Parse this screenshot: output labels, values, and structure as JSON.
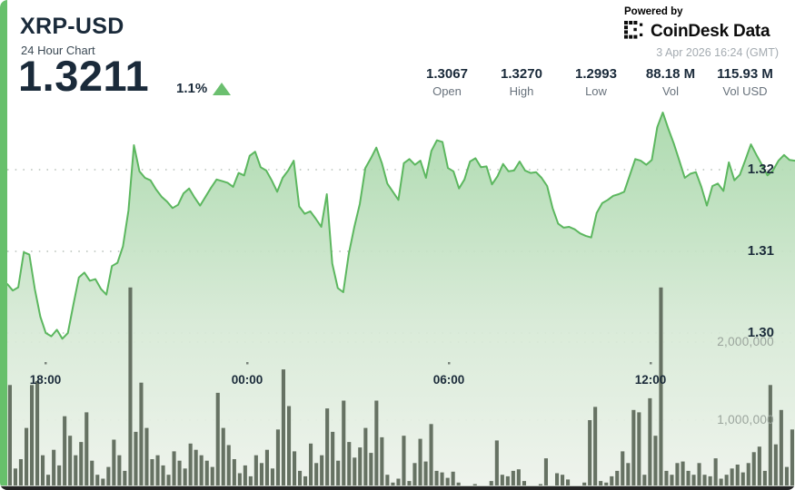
{
  "header": {
    "symbol": "XRP-USD",
    "subtitle": "24 Hour Chart",
    "price": "1.3211",
    "change_percent": "1.1%",
    "change_direction": "up",
    "powered_by": "Powered by",
    "brand_name": "CoinDesk",
    "brand_suffix": "Data",
    "timestamp": "3 Apr 2026 16:24 (GMT)"
  },
  "stats": [
    {
      "value": "1.3067",
      "label": "Open"
    },
    {
      "value": "1.3270",
      "label": "High"
    },
    {
      "value": "1.2993",
      "label": "Low"
    },
    {
      "value": "88.18 M",
      "label": "Vol"
    },
    {
      "value": "115.93 M",
      "label": "Vol USD"
    }
  ],
  "colors": {
    "accent_green": "#67c06b",
    "line_green": "#5cb75f",
    "up_triangle": "#6bbf6f",
    "bar_gray": "#5f6a5c",
    "text_navy": "#1a2a3a",
    "text_gray": "#68727c",
    "axis_gray": "#9aa49c"
  },
  "chart_data": {
    "type": "area+bar",
    "title": "XRP-USD 24 Hour Chart",
    "x": {
      "start_time": "16:40",
      "interval_minutes": 10,
      "points": 144
    },
    "x_ticks": [
      {
        "label": "18:00"
      },
      {
        "label": "00:00"
      },
      {
        "label": "06:00"
      },
      {
        "label": "12:00"
      }
    ],
    "price_axis": {
      "gridlines": [
        1.32,
        1.31,
        1.3
      ],
      "tick_labels": [
        "1.32",
        "1.31",
        "1.30"
      ],
      "ylim": [
        1.296,
        1.328
      ],
      "unit": "USD"
    },
    "volume_axis": {
      "gridlines": [
        2000000,
        1000000
      ],
      "tick_labels": [
        "2,000,000",
        "1,000,000"
      ],
      "unit": "shares"
    },
    "legend": "none",
    "grid": "dotted",
    "series": [
      {
        "name": "XRP-USD price",
        "type": "area",
        "unit": "USD",
        "values": [
          1.306,
          1.3052,
          1.3056,
          1.3099,
          1.3096,
          1.3054,
          1.302,
          1.3,
          1.2996,
          1.3004,
          1.2993,
          1.3,
          1.3035,
          1.3068,
          1.3074,
          1.3064,
          1.3066,
          1.3054,
          1.3047,
          1.3082,
          1.3086,
          1.3106,
          1.315,
          1.323,
          1.3198,
          1.319,
          1.3187,
          1.3176,
          1.3167,
          1.3161,
          1.3153,
          1.3157,
          1.3171,
          1.3177,
          1.3166,
          1.3156,
          1.3167,
          1.3178,
          1.3188,
          1.3186,
          1.3184,
          1.3179,
          1.3196,
          1.3193,
          1.3217,
          1.3222,
          1.3203,
          1.3199,
          1.3187,
          1.3173,
          1.319,
          1.3199,
          1.3211,
          1.3155,
          1.3146,
          1.3149,
          1.314,
          1.313,
          1.317,
          1.3085,
          1.3055,
          1.305,
          1.3097,
          1.313,
          1.3158,
          1.3202,
          1.3214,
          1.3227,
          1.3208,
          1.3183,
          1.3173,
          1.3163,
          1.3208,
          1.3213,
          1.3206,
          1.3211,
          1.319,
          1.3223,
          1.3236,
          1.3234,
          1.3202,
          1.3198,
          1.3177,
          1.3188,
          1.321,
          1.3214,
          1.3203,
          1.3204,
          1.3182,
          1.3192,
          1.3207,
          1.3198,
          1.3199,
          1.321,
          1.3199,
          1.3196,
          1.3197,
          1.319,
          1.318,
          1.3153,
          1.3134,
          1.3129,
          1.313,
          1.3127,
          1.3122,
          1.3119,
          1.3117,
          1.3147,
          1.3159,
          1.3163,
          1.3168,
          1.317,
          1.3173,
          1.3193,
          1.3213,
          1.3211,
          1.3206,
          1.3212,
          1.3252,
          1.327,
          1.325,
          1.3232,
          1.3211,
          1.319,
          1.3195,
          1.3197,
          1.3179,
          1.3156,
          1.318,
          1.3183,
          1.3174,
          1.3209,
          1.3187,
          1.3194,
          1.3212,
          1.3231,
          1.3218,
          1.3206,
          1.3193,
          1.3199,
          1.3211,
          1.3218,
          1.3212,
          1.3211
        ]
      },
      {
        "name": "Volume",
        "type": "bar",
        "unit": "millions",
        "values": [
          1.45,
          0.38,
          0.5,
          0.9,
          1.45,
          1.5,
          0.55,
          0.3,
          0.62,
          0.42,
          1.05,
          0.8,
          0.55,
          0.72,
          1.1,
          0.48,
          0.3,
          0.25,
          0.4,
          0.75,
          0.55,
          0.35,
          2.7,
          0.85,
          1.48,
          0.9,
          0.5,
          0.55,
          0.42,
          0.3,
          0.6,
          0.48,
          0.38,
          0.7,
          0.62,
          0.55,
          0.48,
          0.4,
          1.35,
          0.9,
          0.68,
          0.5,
          0.32,
          0.42,
          0.28,
          0.55,
          0.45,
          0.62,
          0.38,
          0.88,
          1.65,
          1.18,
          0.6,
          0.35,
          0.28,
          0.7,
          0.45,
          0.55,
          1.15,
          0.85,
          0.48,
          1.25,
          0.72,
          0.52,
          0.65,
          0.9,
          0.58,
          1.25,
          0.78,
          0.3,
          0.2,
          0.25,
          0.8,
          0.22,
          0.45,
          0.76,
          0.47,
          0.95,
          0.35,
          0.33,
          0.26,
          0.34,
          0.2,
          0.15,
          0.12,
          0.18,
          0.12,
          0.15,
          0.22,
          0.74,
          0.3,
          0.28,
          0.35,
          0.37,
          0.22,
          0.15,
          0.13,
          0.18,
          0.51,
          0.12,
          0.32,
          0.3,
          0.24,
          0.12,
          0.15,
          0.2,
          1.0,
          1.17,
          0.22,
          0.2,
          0.28,
          0.35,
          0.6,
          0.45,
          1.13,
          1.1,
          0.3,
          1.28,
          0.8,
          2.7,
          0.35,
          0.3,
          0.45,
          0.47,
          0.35,
          0.3,
          0.45,
          0.3,
          0.28,
          0.51,
          0.25,
          0.3,
          0.38,
          0.43,
          0.33,
          0.45,
          0.59,
          0.66,
          0.35,
          1.45,
          0.69,
          1.13,
          0.4,
          0.88
        ]
      }
    ]
  }
}
